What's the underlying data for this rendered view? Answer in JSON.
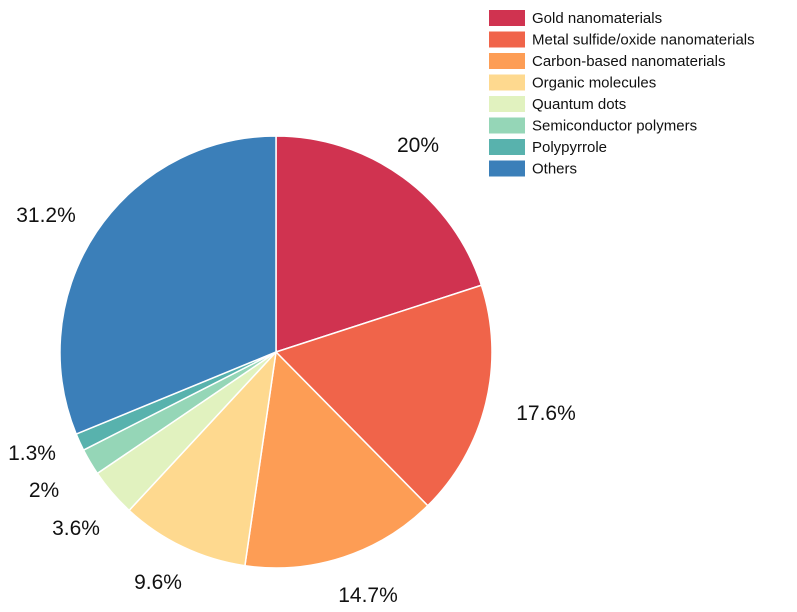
{
  "chart_data": {
    "type": "pie",
    "title": "",
    "legend_position": "top-right",
    "start_angle": "12 o'clock, clockwise",
    "slices": [
      {
        "label": "Gold nanomaterials",
        "value": 20,
        "value_label": "20%",
        "color": "#d03350"
      },
      {
        "label": "Metal sulfide/oxide nanomaterials",
        "value": 17.6,
        "value_label": "17.6%",
        "color": "#f0644a"
      },
      {
        "label": "Carbon-based nanomaterials",
        "value": 14.7,
        "value_label": "14.7%",
        "color": "#fd9d55"
      },
      {
        "label": "Organic molecules",
        "value": 9.6,
        "value_label": "9.6%",
        "color": "#fed98f"
      },
      {
        "label": "Quantum dots",
        "value": 3.6,
        "value_label": "3.6%",
        "color": "#e1f2bf"
      },
      {
        "label": "Semiconductor polymers",
        "value": 2,
        "value_label": "2%",
        "color": "#95d6b7"
      },
      {
        "label": "Polypyrrole",
        "value": 1.3,
        "value_label": "1.3%",
        "color": "#58b2ad"
      },
      {
        "label": "Others",
        "value": 31.2,
        "value_label": "31.2%",
        "color": "#3b7fb9"
      }
    ]
  }
}
